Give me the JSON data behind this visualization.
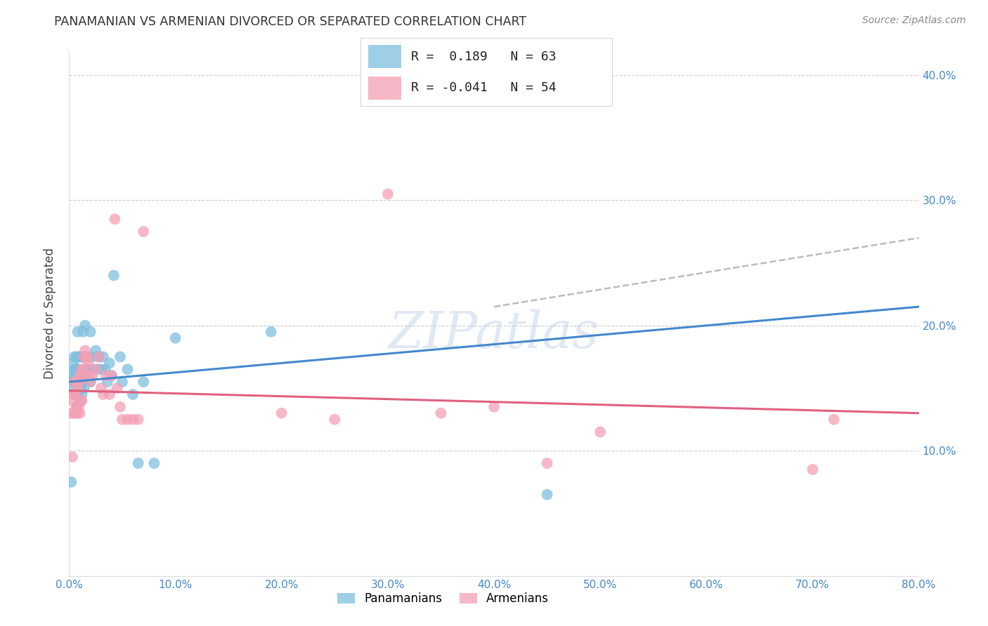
{
  "title": "PANAMANIAN VS ARMENIAN DIVORCED OR SEPARATED CORRELATION CHART",
  "source": "Source: ZipAtlas.com",
  "ylabel": "Divorced or Separated",
  "xlim": [
    0.0,
    0.8
  ],
  "ylim": [
    0.0,
    0.42
  ],
  "xticks": [
    0.0,
    0.1,
    0.2,
    0.3,
    0.4,
    0.5,
    0.6,
    0.7,
    0.8
  ],
  "yticks": [
    0.0,
    0.1,
    0.2,
    0.3,
    0.4
  ],
  "xticklabels": [
    "0.0%",
    "10.0%",
    "20.0%",
    "30.0%",
    "40.0%",
    "50.0%",
    "60.0%",
    "70.0%",
    "80.0%"
  ],
  "yticklabels_right": [
    "",
    "10.0%",
    "20.0%",
    "30.0%",
    "40.0%"
  ],
  "blue_R": 0.189,
  "blue_N": 63,
  "pink_R": -0.041,
  "pink_N": 54,
  "blue_color": "#7fbfdf",
  "pink_color": "#f4a0b5",
  "blue_line_color": "#4488cc",
  "pink_line_color": "#e06080",
  "dashed_line_color": "#aaaaaa",
  "watermark": "ZIPatlas",
  "legend_labels": [
    "Panamanians",
    "Armenians"
  ],
  "blue_points_x": [
    0.002,
    0.003,
    0.003,
    0.004,
    0.004,
    0.004,
    0.005,
    0.005,
    0.005,
    0.005,
    0.006,
    0.006,
    0.006,
    0.007,
    0.007,
    0.007,
    0.007,
    0.008,
    0.008,
    0.008,
    0.009,
    0.009,
    0.01,
    0.01,
    0.01,
    0.011,
    0.011,
    0.012,
    0.012,
    0.013,
    0.013,
    0.014,
    0.014,
    0.015,
    0.015,
    0.016,
    0.017,
    0.018,
    0.019,
    0.02,
    0.02,
    0.022,
    0.023,
    0.025,
    0.027,
    0.028,
    0.03,
    0.032,
    0.034,
    0.036,
    0.038,
    0.04,
    0.042,
    0.048,
    0.05,
    0.055,
    0.06,
    0.065,
    0.07,
    0.08,
    0.1,
    0.19,
    0.45
  ],
  "blue_points_y": [
    0.075,
    0.155,
    0.16,
    0.15,
    0.16,
    0.17,
    0.145,
    0.155,
    0.165,
    0.175,
    0.145,
    0.155,
    0.165,
    0.135,
    0.155,
    0.165,
    0.175,
    0.145,
    0.165,
    0.195,
    0.15,
    0.175,
    0.14,
    0.155,
    0.175,
    0.15,
    0.175,
    0.145,
    0.175,
    0.155,
    0.195,
    0.15,
    0.175,
    0.16,
    0.2,
    0.175,
    0.165,
    0.165,
    0.175,
    0.155,
    0.195,
    0.175,
    0.165,
    0.18,
    0.165,
    0.175,
    0.165,
    0.175,
    0.165,
    0.155,
    0.17,
    0.16,
    0.24,
    0.175,
    0.155,
    0.165,
    0.145,
    0.09,
    0.155,
    0.09,
    0.19,
    0.195,
    0.065
  ],
  "pink_points_x": [
    0.002,
    0.003,
    0.003,
    0.004,
    0.005,
    0.005,
    0.005,
    0.006,
    0.006,
    0.007,
    0.007,
    0.008,
    0.008,
    0.009,
    0.009,
    0.01,
    0.01,
    0.011,
    0.011,
    0.012,
    0.012,
    0.013,
    0.014,
    0.015,
    0.016,
    0.017,
    0.018,
    0.019,
    0.02,
    0.022,
    0.025,
    0.028,
    0.03,
    0.032,
    0.035,
    0.038,
    0.04,
    0.043,
    0.045,
    0.048,
    0.05,
    0.055,
    0.06,
    0.065,
    0.07,
    0.2,
    0.25,
    0.3,
    0.35,
    0.4,
    0.45,
    0.5,
    0.7,
    0.72
  ],
  "pink_points_y": [
    0.13,
    0.095,
    0.14,
    0.145,
    0.13,
    0.145,
    0.155,
    0.13,
    0.145,
    0.135,
    0.155,
    0.13,
    0.15,
    0.135,
    0.155,
    0.13,
    0.16,
    0.14,
    0.16,
    0.14,
    0.165,
    0.165,
    0.175,
    0.18,
    0.175,
    0.175,
    0.17,
    0.16,
    0.155,
    0.16,
    0.165,
    0.175,
    0.15,
    0.145,
    0.16,
    0.145,
    0.16,
    0.285,
    0.15,
    0.135,
    0.125,
    0.125,
    0.125,
    0.125,
    0.275,
    0.13,
    0.125,
    0.305,
    0.13,
    0.135,
    0.09,
    0.115,
    0.085,
    0.125
  ],
  "blue_line_x": [
    0.0,
    0.8
  ],
  "blue_line_y": [
    0.155,
    0.215
  ],
  "pink_line_x": [
    0.0,
    0.8
  ],
  "pink_line_y": [
    0.148,
    0.13
  ],
  "dashed_line_x": [
    0.4,
    0.8
  ],
  "dashed_line_y": [
    0.215,
    0.27
  ]
}
